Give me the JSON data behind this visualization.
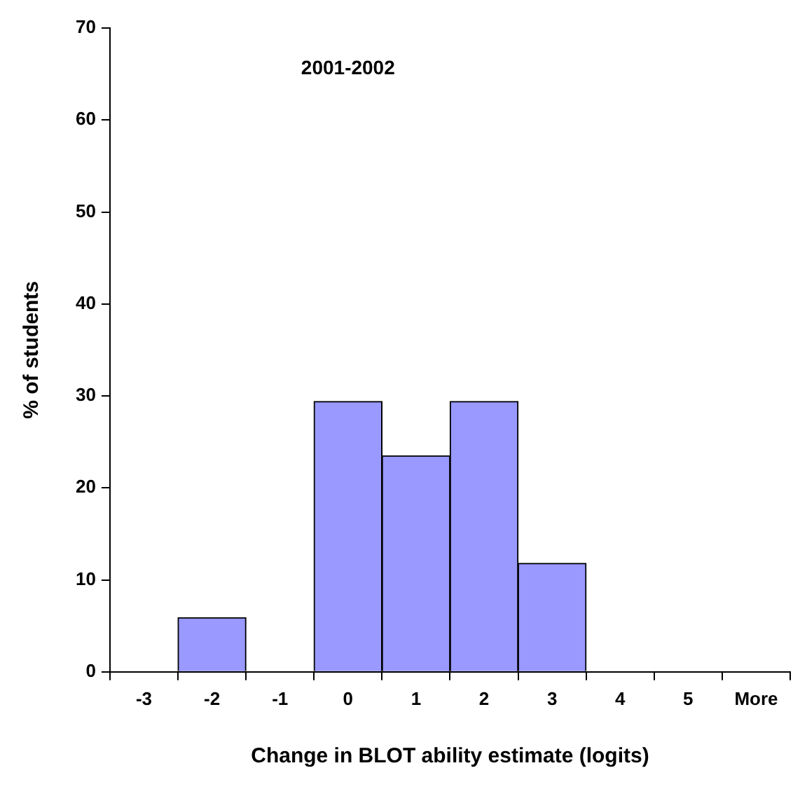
{
  "chart_data": {
    "type": "bar",
    "title": "2001-2002",
    "xlabel": "Change in BLOT ability estimate (logits)",
    "ylabel": "% of students",
    "categories": [
      "-3",
      "-2",
      "-1",
      "0",
      "1",
      "2",
      "3",
      "4",
      "5",
      "More"
    ],
    "values": [
      0,
      5.9,
      0,
      29.4,
      23.5,
      29.4,
      11.8,
      0,
      0,
      0
    ],
    "color": "#9999ff",
    "ylim": [
      0,
      70
    ],
    "yticks": [
      0,
      10,
      20,
      30,
      40,
      50,
      60,
      70
    ],
    "grid": false,
    "legend": false
  }
}
